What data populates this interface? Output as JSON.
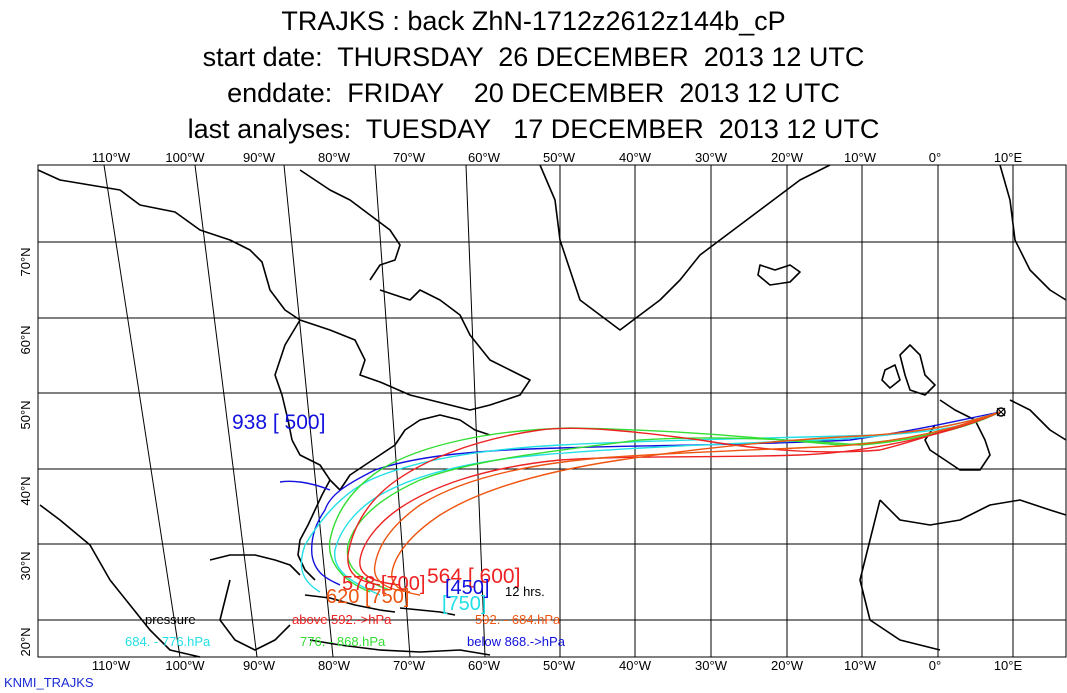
{
  "title": {
    "line1": "TRAJKS : back ZhN-1712z2612z144b_cP",
    "line2": "start date:  THURSDAY  26 DECEMBER  2013 12 UTC",
    "line3": "enddate:  FRIDAY    20 DECEMBER  2013 12 UTC",
    "line4": "last analyses:  TUESDAY   17 DECEMBER  2013 12 UTC"
  },
  "map": {
    "lon_labels": [
      "110°W",
      "100°W",
      "90°W",
      "80°W",
      "70°W",
      "60°W",
      "50°W",
      "40°W",
      "30°W",
      "20°W",
      "10°W",
      "0°",
      "10°E"
    ],
    "lat_labels": [
      "70°N",
      "60°N",
      "50°N",
      "40°N",
      "30°N",
      "20°N"
    ],
    "colors": {
      "cyan": "#22e0e6",
      "green": "#33dd33",
      "red": "#ee2222",
      "orange": "#ee5511",
      "blue": "#1111dd",
      "black": "#000000"
    }
  },
  "labels": {
    "blue_start": "938 [ 500]",
    "red_start": "564 [ 600]",
    "overlap_a": "578 [700]",
    "overlap_b": "620 [750]",
    "overlap_c": "[750]",
    "overlap_d": "[450]",
    "interval": "12 hrs."
  },
  "legend": {
    "pressure": "pressure",
    "cyan_range": "684. -    776.hPa",
    "above": "above    592.->hPa",
    "orange_range": "592. -     684.hPa",
    "green_range": "776. -     868.hPa",
    "below": "below    868.->hPa"
  },
  "credit": "KNMI_TRAJKS"
}
